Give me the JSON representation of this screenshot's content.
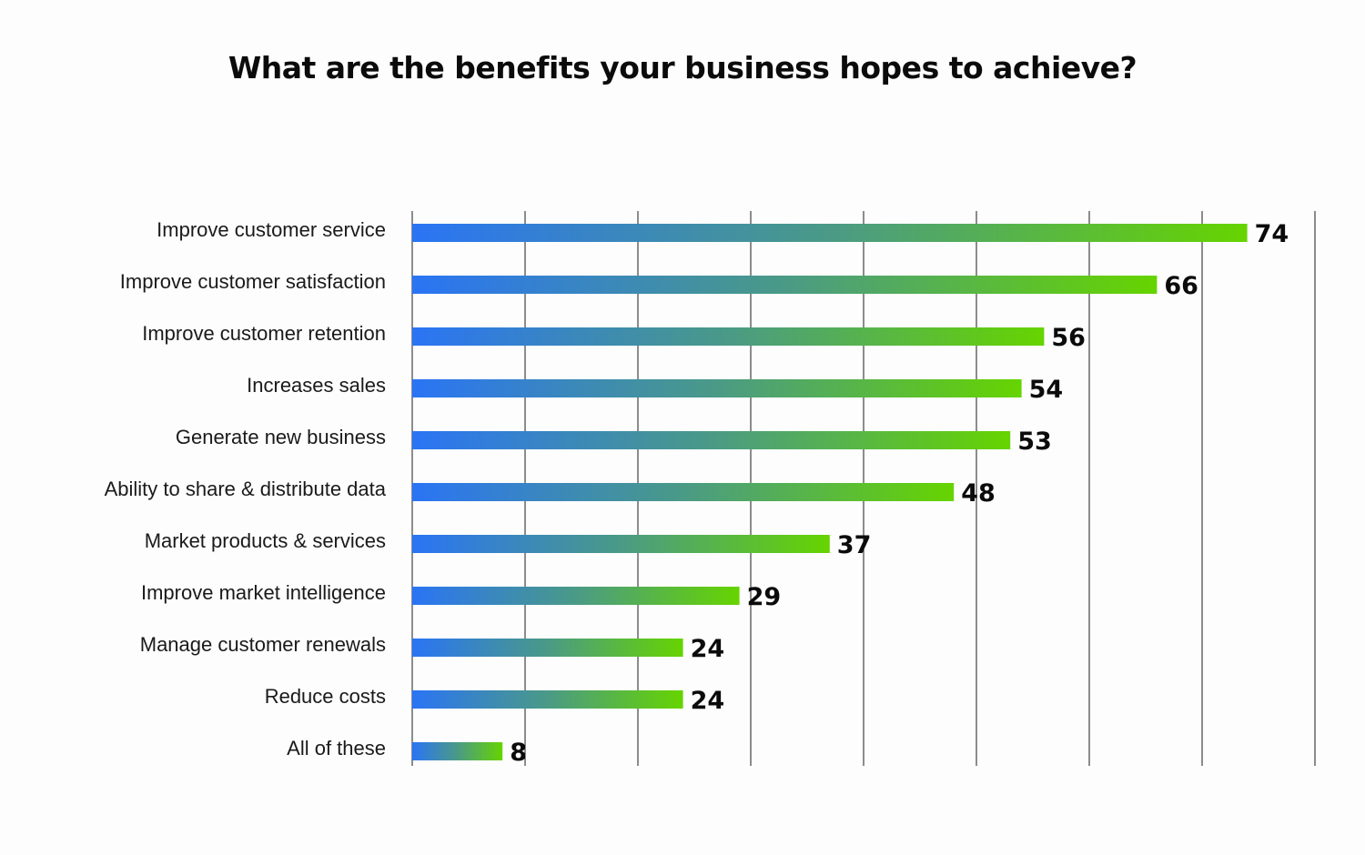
{
  "chart_data": {
    "type": "bar",
    "orientation": "horizontal",
    "title": "What are the benefits your business hopes to achieve?",
    "xlabel": "",
    "ylabel": "",
    "categories": [
      "Improve customer service",
      "Improve customer satisfaction",
      "Improve customer retention",
      "Increases sales",
      "Generate new business",
      "Ability to share & distribute data",
      "Market products & services",
      "Improve market intelligence",
      "Manage customer renewals",
      "Reduce costs",
      "All of these"
    ],
    "values": [
      74,
      66,
      56,
      54,
      53,
      48,
      37,
      29,
      24,
      24,
      8
    ],
    "xlim": [
      0,
      80
    ],
    "grid": true,
    "legend": "none",
    "colors": {
      "bar_gradient_start": "#2a74f5",
      "bar_gradient_mid": "#4a9a86",
      "bar_gradient_end": "#66d400",
      "gridline": "#1a1a1a",
      "text": "#0b0b0b"
    }
  }
}
